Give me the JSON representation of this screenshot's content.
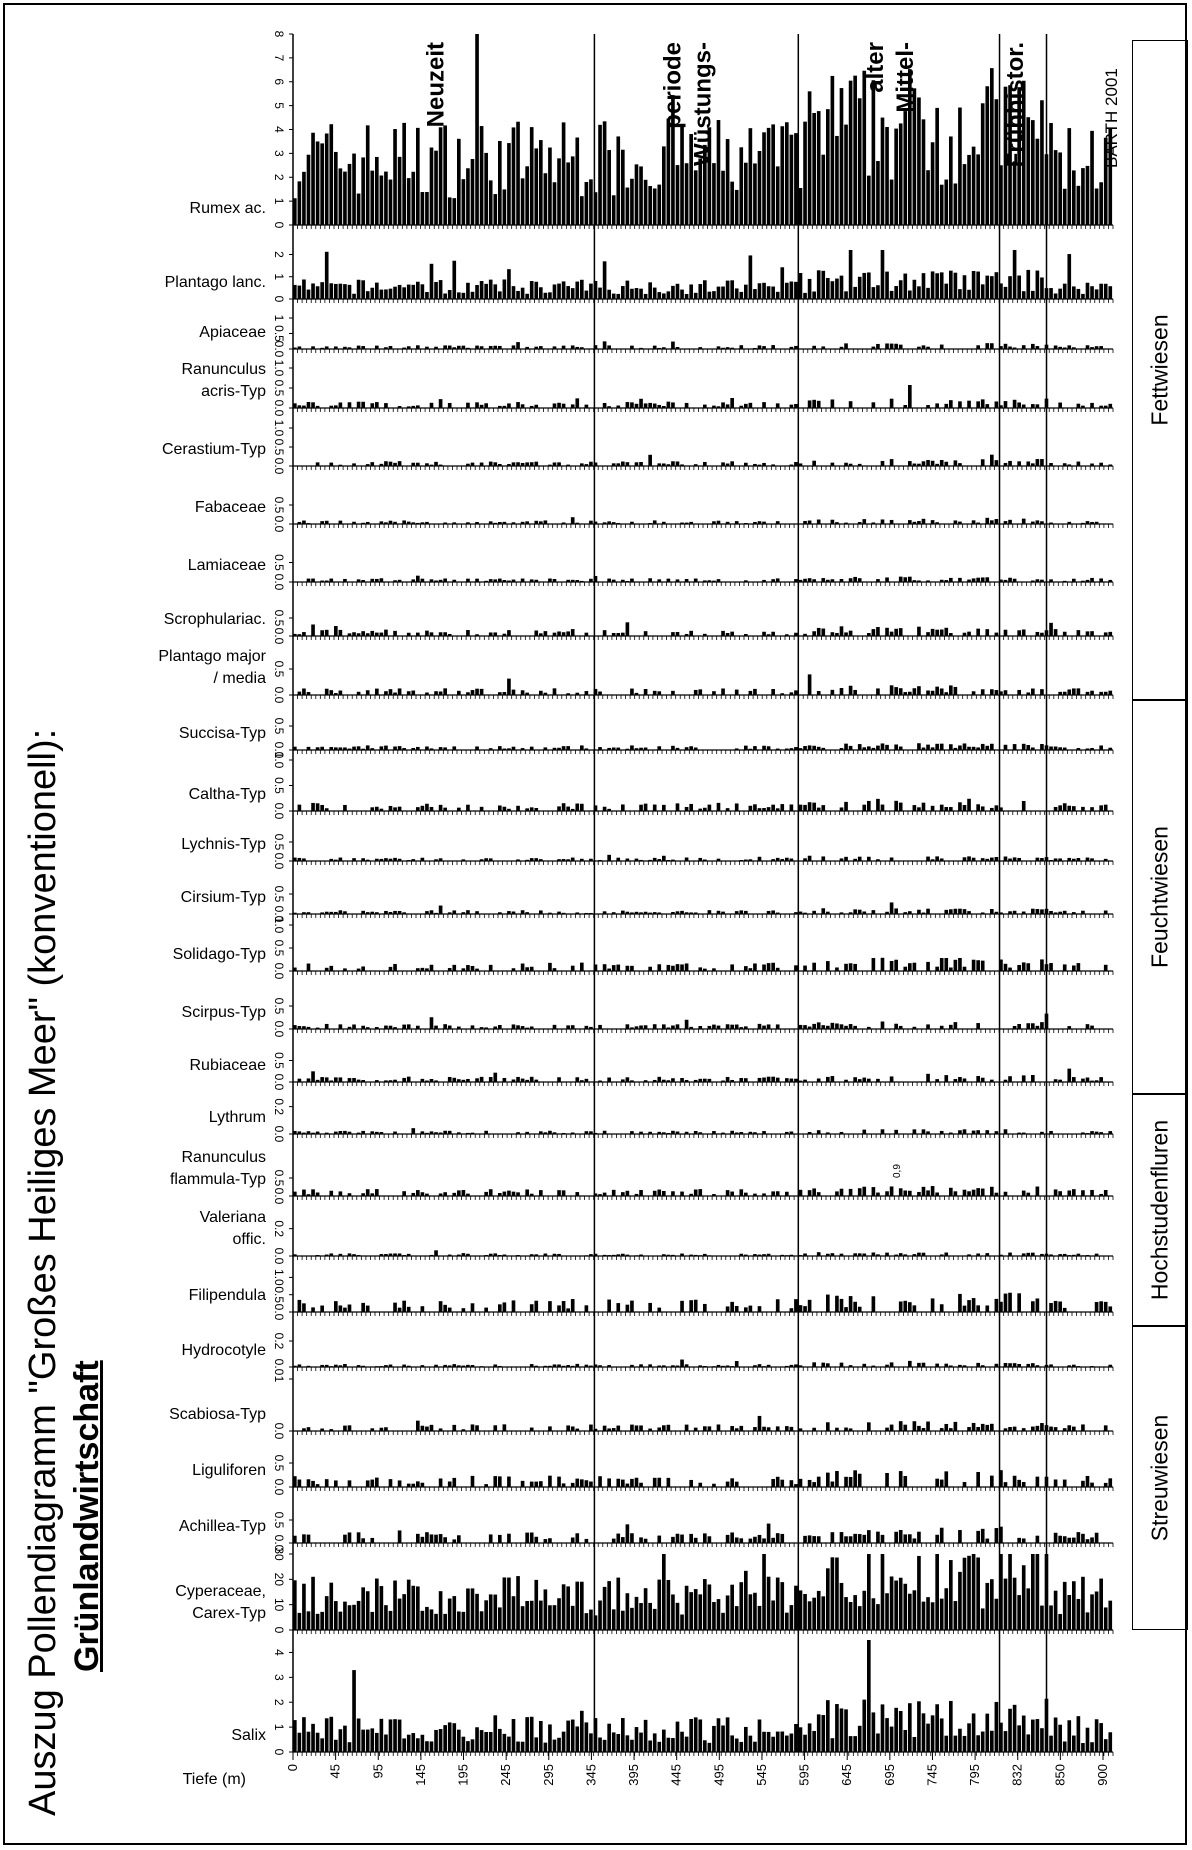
{
  "title": "Auszug Pollendiagramm \"Großes Heiliges Meer\" (konventionell):",
  "subtitle": "Grünlandwirtschaft",
  "credit": "BARTH 2001",
  "colors": {
    "bar": "#000000",
    "axis": "#000000",
    "background": "#ffffff"
  },
  "chart_data": {
    "type": "bar",
    "xlabel": "Tiefe (m)",
    "x_ticks": [
      "0",
      "45",
      "95",
      "145",
      "195",
      "245",
      "295",
      "345",
      "395",
      "445",
      "495",
      "545",
      "595",
      "645",
      "695",
      "745",
      "795",
      "832",
      "850",
      "900"
    ],
    "xlim": [
      0,
      925
    ],
    "periods": [
      {
        "label": "Neuzeit",
        "from": 0,
        "to": 340
      },
      {
        "label": "Wüstungs-\nperiode",
        "from": 340,
        "to": 570
      },
      {
        "label": "Mittel-\nalter",
        "from": 570,
        "to": 797
      },
      {
        "label": "Frühhistor.",
        "from": 797,
        "to": 850
      }
    ],
    "series": [
      {
        "name": "Rumex ac.",
        "ticks": [
          "0",
          "1",
          "2",
          "3",
          "4",
          "5",
          "6",
          "7",
          "8"
        ],
        "ylim": [
          0,
          8
        ]
      },
      {
        "name": "Plantago lanc.",
        "ticks": [
          "0",
          "1",
          "2"
        ],
        "ylim": [
          0,
          2.2
        ]
      },
      {
        "name": "Apiaceae",
        "ticks": [
          "0.0",
          "0.5",
          "1"
        ],
        "ylim": [
          0,
          1
        ]
      },
      {
        "name": "Ranunculus acris-Typ",
        "ticks": [
          "0.0",
          "0.5",
          "1.0"
        ],
        "ylim": [
          0,
          1
        ]
      },
      {
        "name": "Cerastium-Typ",
        "ticks": [
          "0.0",
          "0.5",
          "1.0"
        ],
        "ylim": [
          0,
          1
        ]
      },
      {
        "name": "Fabaceae",
        "ticks": [
          "0.0",
          "0.5"
        ],
        "ylim": [
          0,
          1
        ]
      },
      {
        "name": "Lamiaceae",
        "ticks": [
          "0.0",
          "0.5"
        ],
        "ylim": [
          0,
          1
        ]
      },
      {
        "name": "Scrophulariac.",
        "ticks": [
          "0.0",
          "0.5"
        ],
        "ylim": [
          0,
          1
        ]
      },
      {
        "name": "Plantago major / media",
        "ticks": [
          "0.0",
          "0.5"
        ],
        "ylim": [
          0,
          1
        ]
      },
      {
        "name": "Succisa-Typ",
        "ticks": [
          "0.0",
          "0.5"
        ],
        "ylim": [
          0,
          1
        ]
      },
      {
        "name": "Caltha-Typ",
        "ticks": [
          "0.0",
          "0.5",
          "1.0"
        ],
        "ylim": [
          0,
          1
        ]
      },
      {
        "name": "Lychnis-Typ",
        "ticks": [
          "0.0",
          "0.5"
        ],
        "ylim": [
          0,
          1
        ]
      },
      {
        "name": "Cirsium-Typ",
        "ticks": [
          "0.0",
          "0.5"
        ],
        "ylim": [
          0,
          1
        ]
      },
      {
        "name": "Solidago-Typ",
        "ticks": [
          "0.0",
          "0.5",
          "1.0"
        ],
        "ylim": [
          0,
          1
        ]
      },
      {
        "name": "Scirpus-Typ",
        "ticks": [
          "0.0",
          "0.5"
        ],
        "ylim": [
          0,
          1
        ]
      },
      {
        "name": "Rubiaceae",
        "ticks": [
          "0.0",
          "0.5"
        ],
        "ylim": [
          0,
          1
        ]
      },
      {
        "name": "Lythrum",
        "ticks": [
          "0.0",
          "0.2"
        ],
        "ylim": [
          0,
          0.3
        ]
      },
      {
        "name": "Ranunculus flammula-Typ",
        "ticks": [
          "0.0",
          "0.5"
        ],
        "ylim": [
          0,
          1
        ],
        "annotation": "0,9"
      },
      {
        "name": "Valeriana offic.",
        "ticks": [
          "0.0",
          "0.2"
        ],
        "ylim": [
          0,
          0.3
        ]
      },
      {
        "name": "Filipendula",
        "ticks": [
          "0.0",
          "0.5",
          "1.0"
        ],
        "ylim": [
          0,
          1.3
        ]
      },
      {
        "name": "Hydrocotyle",
        "ticks": [
          "0.0",
          "0.2"
        ],
        "ylim": [
          0,
          0.3
        ]
      },
      {
        "name": "Scabiosa-Typ",
        "ticks": [
          "0.0",
          "1"
        ],
        "ylim": [
          0,
          1
        ]
      },
      {
        "name": "Liguliforen",
        "ticks": [
          "0.0",
          "0.5"
        ],
        "ylim": [
          0,
          1
        ]
      },
      {
        "name": "Achillea-Typ",
        "ticks": [
          "0.0",
          "0.5"
        ],
        "ylim": [
          0,
          1
        ]
      },
      {
        "name": "Cyperaceae, Carex-Typ",
        "ticks": [
          "0",
          "10",
          "20",
          "30"
        ],
        "ylim": [
          0,
          30
        ]
      },
      {
        "name": "Salix",
        "ticks": [
          "0",
          "1",
          "2",
          "3",
          "4"
        ],
        "ylim": [
          0,
          4.5
        ]
      }
    ],
    "groups": [
      "Fettwiesen",
      "Feuchtwiesen",
      "Hochstudenfluren",
      "Streuwiesen"
    ]
  }
}
